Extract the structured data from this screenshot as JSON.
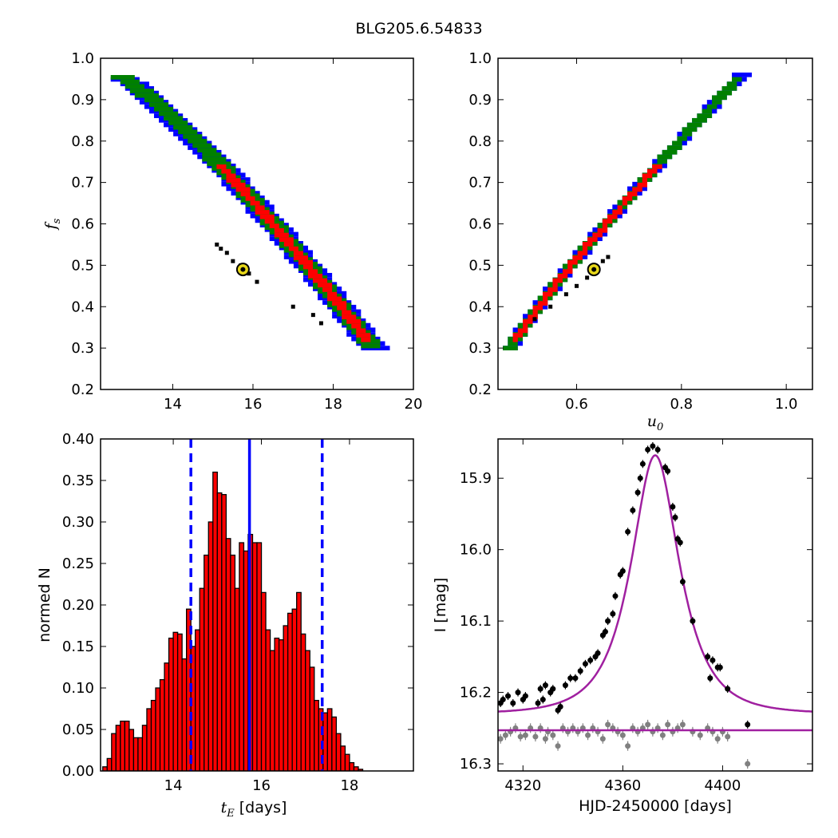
{
  "figure": {
    "title": "BLG205.6.54833"
  },
  "colors": {
    "level1": "#0000ff",
    "level2": "#008000",
    "level3": "#ff0000",
    "points": "#000000",
    "best_marker": "#e8d81a",
    "hist_fill": "#ff0000",
    "vline": "#0000ff",
    "model": "#a020a0",
    "residual": "#808080"
  },
  "chart_data": [
    {
      "type": "heatmap",
      "panel": "top-left",
      "xlabel": "",
      "ylabel": "f_s",
      "xlim": [
        12.2,
        20.0
      ],
      "ylim": [
        0.2,
        1.0
      ],
      "xticks": [
        "14",
        "16",
        "18",
        "20"
      ],
      "yticks": [
        "0.2",
        "0.3",
        "0.4",
        "0.5",
        "0.6",
        "0.7",
        "0.8",
        "0.9",
        "1.0"
      ],
      "relation": "f_s decreases with t_E along a curved band from (12.6, 0.96) to (19.3, 0.30)",
      "best_fit": {
        "x": 15.75,
        "y": 0.49
      },
      "points": [
        [
          15.1,
          0.55
        ],
        [
          15.2,
          0.54
        ],
        [
          15.35,
          0.53
        ],
        [
          15.5,
          0.51
        ],
        [
          15.7,
          0.5
        ],
        [
          15.9,
          0.48
        ],
        [
          16.1,
          0.46
        ],
        [
          17.0,
          0.4
        ],
        [
          17.5,
          0.38
        ],
        [
          17.7,
          0.36
        ]
      ]
    },
    {
      "type": "heatmap",
      "panel": "top-right",
      "xlabel": "u_0",
      "ylabel": "",
      "xlim": [
        0.45,
        1.05
      ],
      "ylim": [
        0.2,
        1.0
      ],
      "xticks": [
        "0.6",
        "0.8",
        "1.0"
      ],
      "yticks": [
        "0.2",
        "0.3",
        "0.4",
        "0.5",
        "0.6",
        "0.7",
        "0.8",
        "0.9",
        "1.0"
      ],
      "relation": "f_s increases nearly linearly with u_0 from (0.47, 0.30) to (0.92, 0.96)",
      "best_fit": {
        "x": 0.633,
        "y": 0.49
      },
      "points": [
        [
          0.52,
          0.37
        ],
        [
          0.55,
          0.4
        ],
        [
          0.58,
          0.43
        ],
        [
          0.6,
          0.45
        ],
        [
          0.62,
          0.47
        ],
        [
          0.65,
          0.51
        ],
        [
          0.66,
          0.52
        ]
      ]
    },
    {
      "type": "bar",
      "panel": "bottom-left",
      "xlabel": "t_E [days]",
      "ylabel": "normed N",
      "xlim": [
        12.35,
        19.45
      ],
      "ylim": [
        0.0,
        0.4
      ],
      "xticks": [
        "14",
        "16",
        "18"
      ],
      "yticks": [
        "0.00",
        "0.05",
        "0.10",
        "0.15",
        "0.20",
        "0.25",
        "0.30",
        "0.35",
        "0.40"
      ],
      "bin_start": 12.4,
      "bin_width": 0.1,
      "values": [
        0.005,
        0.015,
        0.045,
        0.055,
        0.06,
        0.06,
        0.05,
        0.04,
        0.04,
        0.055,
        0.075,
        0.085,
        0.1,
        0.11,
        0.13,
        0.16,
        0.167,
        0.165,
        0.135,
        0.195,
        0.15,
        0.17,
        0.22,
        0.26,
        0.3,
        0.36,
        0.335,
        0.333,
        0.28,
        0.26,
        0.22,
        0.275,
        0.265,
        0.285,
        0.275,
        0.275,
        0.215,
        0.17,
        0.145,
        0.16,
        0.158,
        0.175,
        0.19,
        0.195,
        0.215,
        0.165,
        0.145,
        0.125,
        0.085,
        0.075,
        0.07,
        0.075,
        0.065,
        0.045,
        0.03,
        0.02,
        0.01,
        0.005,
        0.002
      ],
      "vlines": {
        "median": 15.73,
        "lower": 14.4,
        "upper": 17.38
      }
    },
    {
      "type": "line",
      "panel": "bottom-right",
      "xlabel": "HJD-2450000 [days]",
      "ylabel": "I [mag]",
      "xlim": [
        4310,
        4436
      ],
      "ylim": [
        16.31,
        15.845
      ],
      "y_inverted": true,
      "xticks": [
        "4320",
        "4360",
        "4400"
      ],
      "yticks": [
        "15.9",
        "16.0",
        "16.1",
        "16.2",
        "16.3"
      ],
      "model": {
        "t0": 4373,
        "u0": 0.633,
        "tE": 15.75,
        "fs": 0.49,
        "baseline": 16.23
      },
      "residual_level": 16.253,
      "data": [
        [
          4311,
          16.215
        ],
        [
          4312,
          16.21
        ],
        [
          4314,
          16.205
        ],
        [
          4316,
          16.215
        ],
        [
          4318,
          16.2
        ],
        [
          4320,
          16.21
        ],
        [
          4321,
          16.205
        ],
        [
          4326,
          16.215
        ],
        [
          4327,
          16.195
        ],
        [
          4328,
          16.21
        ],
        [
          4329,
          16.19
        ],
        [
          4331,
          16.2
        ],
        [
          4332,
          16.195
        ],
        [
          4334,
          16.225
        ],
        [
          4335,
          16.22
        ],
        [
          4337,
          16.19
        ],
        [
          4339,
          16.18
        ],
        [
          4341,
          16.18
        ],
        [
          4343,
          16.17
        ],
        [
          4345,
          16.16
        ],
        [
          4347,
          16.155
        ],
        [
          4349,
          16.15
        ],
        [
          4350,
          16.145
        ],
        [
          4352,
          16.12
        ],
        [
          4353,
          16.115
        ],
        [
          4354,
          16.1
        ],
        [
          4356,
          16.09
        ],
        [
          4357,
          16.065
        ],
        [
          4359,
          16.035
        ],
        [
          4360,
          16.03
        ],
        [
          4362,
          15.975
        ],
        [
          4364,
          15.945
        ],
        [
          4366,
          15.92
        ],
        [
          4367,
          15.9
        ],
        [
          4368,
          15.88
        ],
        [
          4370,
          15.86
        ],
        [
          4372,
          15.855
        ],
        [
          4374,
          15.86
        ],
        [
          4377,
          15.885
        ],
        [
          4378,
          15.89
        ],
        [
          4380,
          15.94
        ],
        [
          4381,
          15.955
        ],
        [
          4382,
          15.985
        ],
        [
          4383,
          15.99
        ],
        [
          4384,
          16.045
        ],
        [
          4388,
          16.1
        ],
        [
          4394,
          16.15
        ],
        [
          4396,
          16.155
        ],
        [
          4398,
          16.165
        ],
        [
          4399,
          16.165
        ],
        [
          4395,
          16.18
        ],
        [
          4402,
          16.195
        ],
        [
          4410,
          16.245
        ]
      ],
      "residuals": [
        [
          4311,
          16.265
        ],
        [
          4313,
          16.26
        ],
        [
          4315,
          16.255
        ],
        [
          4317,
          16.25
        ],
        [
          4319,
          16.262
        ],
        [
          4321,
          16.26
        ],
        [
          4323,
          16.25
        ],
        [
          4325,
          16.262
        ],
        [
          4327,
          16.25
        ],
        [
          4329,
          16.265
        ],
        [
          4330,
          16.255
        ],
        [
          4332,
          16.26
        ],
        [
          4334,
          16.275
        ],
        [
          4336,
          16.25
        ],
        [
          4338,
          16.255
        ],
        [
          4340,
          16.25
        ],
        [
          4342,
          16.255
        ],
        [
          4344,
          16.25
        ],
        [
          4346,
          16.26
        ],
        [
          4348,
          16.25
        ],
        [
          4350,
          16.255
        ],
        [
          4352,
          16.265
        ],
        [
          4354,
          16.245
        ],
        [
          4356,
          16.25
        ],
        [
          4358,
          16.255
        ],
        [
          4360,
          16.26
        ],
        [
          4362,
          16.275
        ],
        [
          4364,
          16.25
        ],
        [
          4366,
          16.255
        ],
        [
          4368,
          16.25
        ],
        [
          4370,
          16.245
        ],
        [
          4372,
          16.255
        ],
        [
          4374,
          16.25
        ],
        [
          4376,
          16.26
        ],
        [
          4378,
          16.245
        ],
        [
          4380,
          16.255
        ],
        [
          4382,
          16.25
        ],
        [
          4384,
          16.245
        ],
        [
          4388,
          16.255
        ],
        [
          4391,
          16.26
        ],
        [
          4394,
          16.25
        ],
        [
          4396,
          16.255
        ],
        [
          4398,
          16.265
        ],
        [
          4400,
          16.255
        ],
        [
          4402,
          16.262
        ],
        [
          4410,
          16.3
        ]
      ]
    }
  ]
}
